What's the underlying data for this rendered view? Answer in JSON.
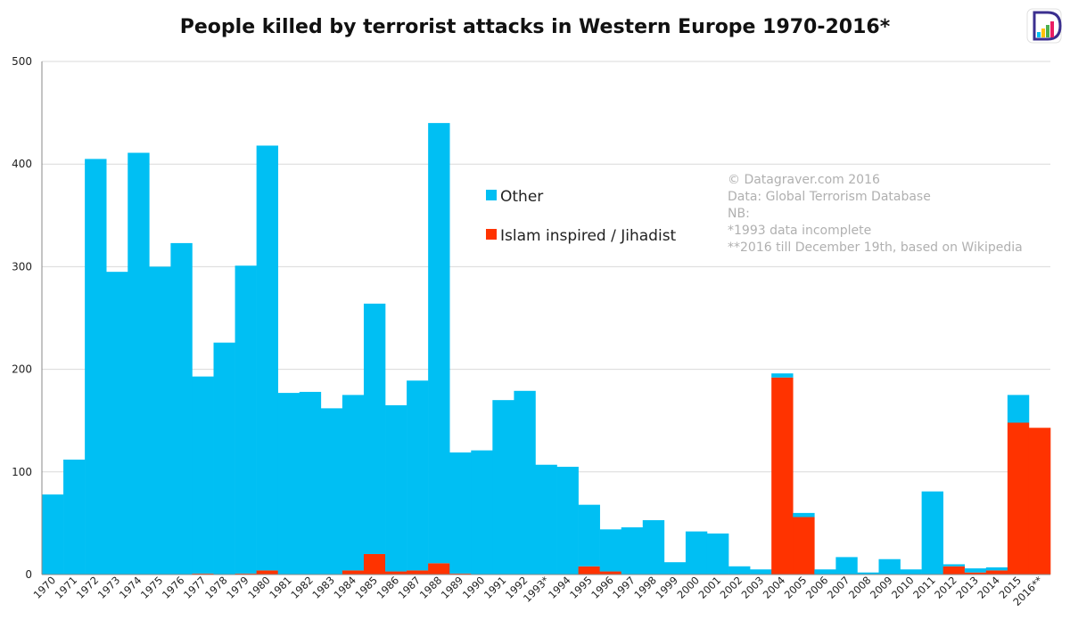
{
  "colors": {
    "other": "#00BFF3",
    "islamist": "#FF3300",
    "grid": "#d9d9d9",
    "axis": "#888888",
    "note": "#b0b0b0",
    "logo_outline": "#3b2f8f"
  },
  "logo": {
    "icon": "datagraver-logo-icon"
  },
  "notes": [
    "© Datagraver.com 2016",
    "Data: Global Terrorism Database",
    "NB:",
    "*1993 data incomplete",
    "**2016 till December 19th, based on Wikipedia"
  ],
  "chart_data": {
    "type": "bar",
    "stacked": true,
    "title": "People killed by terrorist attacks in Western Europe 1970-2016*",
    "xlabel": "",
    "ylabel": "",
    "ylim": [
      0,
      500
    ],
    "yticks": [
      0,
      100,
      200,
      300,
      400,
      500
    ],
    "grid": true,
    "legend": "inside-top-center",
    "categories": [
      "1970",
      "1971",
      "1972",
      "1973",
      "1974",
      "1975",
      "1976",
      "1977",
      "1978",
      "1979",
      "1980",
      "1981",
      "1982",
      "1983",
      "1984",
      "1985",
      "1986",
      "1987",
      "1988",
      "1989",
      "1990",
      "1991",
      "1992",
      "1993*",
      "1994",
      "1995",
      "1996",
      "1997",
      "1998",
      "1999",
      "2000",
      "2001",
      "2002",
      "2003",
      "2004",
      "2005",
      "2006",
      "2007",
      "2008",
      "2009",
      "2010",
      "2011",
      "2012",
      "2013",
      "2014",
      "2015",
      "2016**"
    ],
    "series": [
      {
        "name": "Islam inspired / Jihadist",
        "color": "#FF3300",
        "values": [
          0,
          0,
          0,
          0,
          0,
          0,
          0,
          1,
          0,
          1,
          4,
          0,
          0,
          0,
          4,
          20,
          3,
          4,
          11,
          1,
          0,
          0,
          0,
          0,
          0,
          8,
          3,
          0,
          0,
          0,
          0,
          0,
          0,
          0,
          192,
          56,
          0,
          0,
          0,
          0,
          0,
          0,
          8,
          2,
          4,
          148,
          143
        ]
      },
      {
        "name": "Other",
        "color": "#00BFF3",
        "values": [
          78,
          112,
          405,
          295,
          411,
          300,
          323,
          192,
          226,
          300,
          414,
          177,
          178,
          162,
          171,
          244,
          162,
          185,
          429,
          118,
          121,
          170,
          179,
          107,
          105,
          60,
          41,
          46,
          53,
          12,
          42,
          40,
          8,
          5,
          4,
          4,
          5,
          17,
          2,
          15,
          5,
          81,
          2,
          4,
          3,
          27,
          0
        ]
      }
    ],
    "legend_order": [
      "Other",
      "Islam inspired / Jihadist"
    ]
  }
}
